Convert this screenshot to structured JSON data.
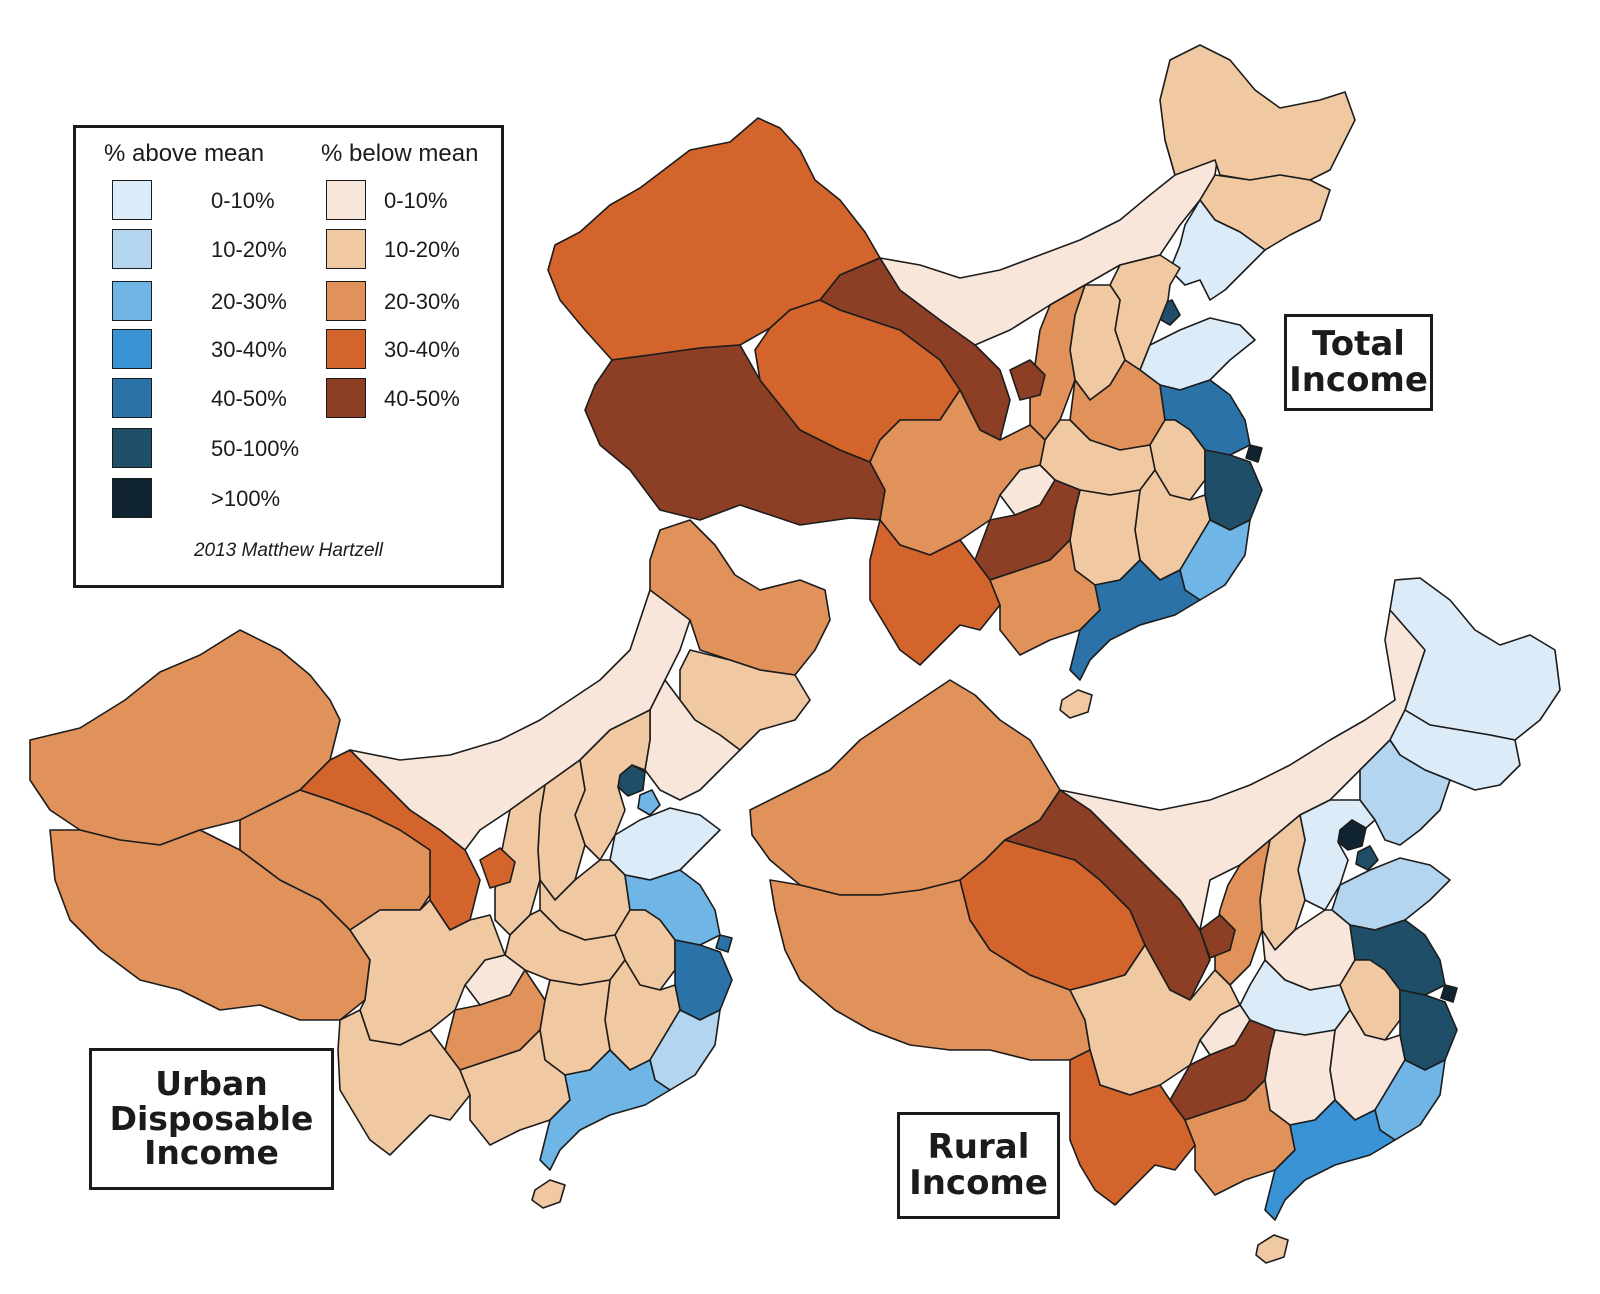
{
  "legend": {
    "heading_above": "% above mean",
    "heading_below": "% below mean",
    "above": [
      {
        "label": "0-10%",
        "color": "#dcebf8"
      },
      {
        "label": "10-20%",
        "color": "#b3d5f0"
      },
      {
        "label": "20-30%",
        "color": "#6fb6e6"
      },
      {
        "label": "30-40%",
        "color": "#3a93d5"
      },
      {
        "label": "40-50%",
        "color": "#2a72a8"
      },
      {
        "label": "50-100%",
        "color": "#1f4e68"
      },
      {
        "label": ">100%",
        "color": "#0f2430"
      }
    ],
    "below": [
      {
        "label": "0-10%",
        "color": "#f7e6d9"
      },
      {
        "label": "10-20%",
        "color": "#f0c9a2"
      },
      {
        "label": "20-30%",
        "color": "#e0925a"
      },
      {
        "label": "30-40%",
        "color": "#d3642c"
      },
      {
        "label": "40-50%",
        "color": "#8c3f24"
      }
    ],
    "credit": "2013 Matthew Hartzell"
  },
  "maps": {
    "total": {
      "title_line1": "Total",
      "title_line2": "Income"
    },
    "urban": {
      "title_line1": "Urban",
      "title_line2": "Disposable",
      "title_line3": "Income"
    },
    "rural": {
      "title_line1": "Rural",
      "title_line2": "Income"
    }
  },
  "colors": {
    "outline": "#1c1c1c",
    "background": "#ffffff"
  }
}
